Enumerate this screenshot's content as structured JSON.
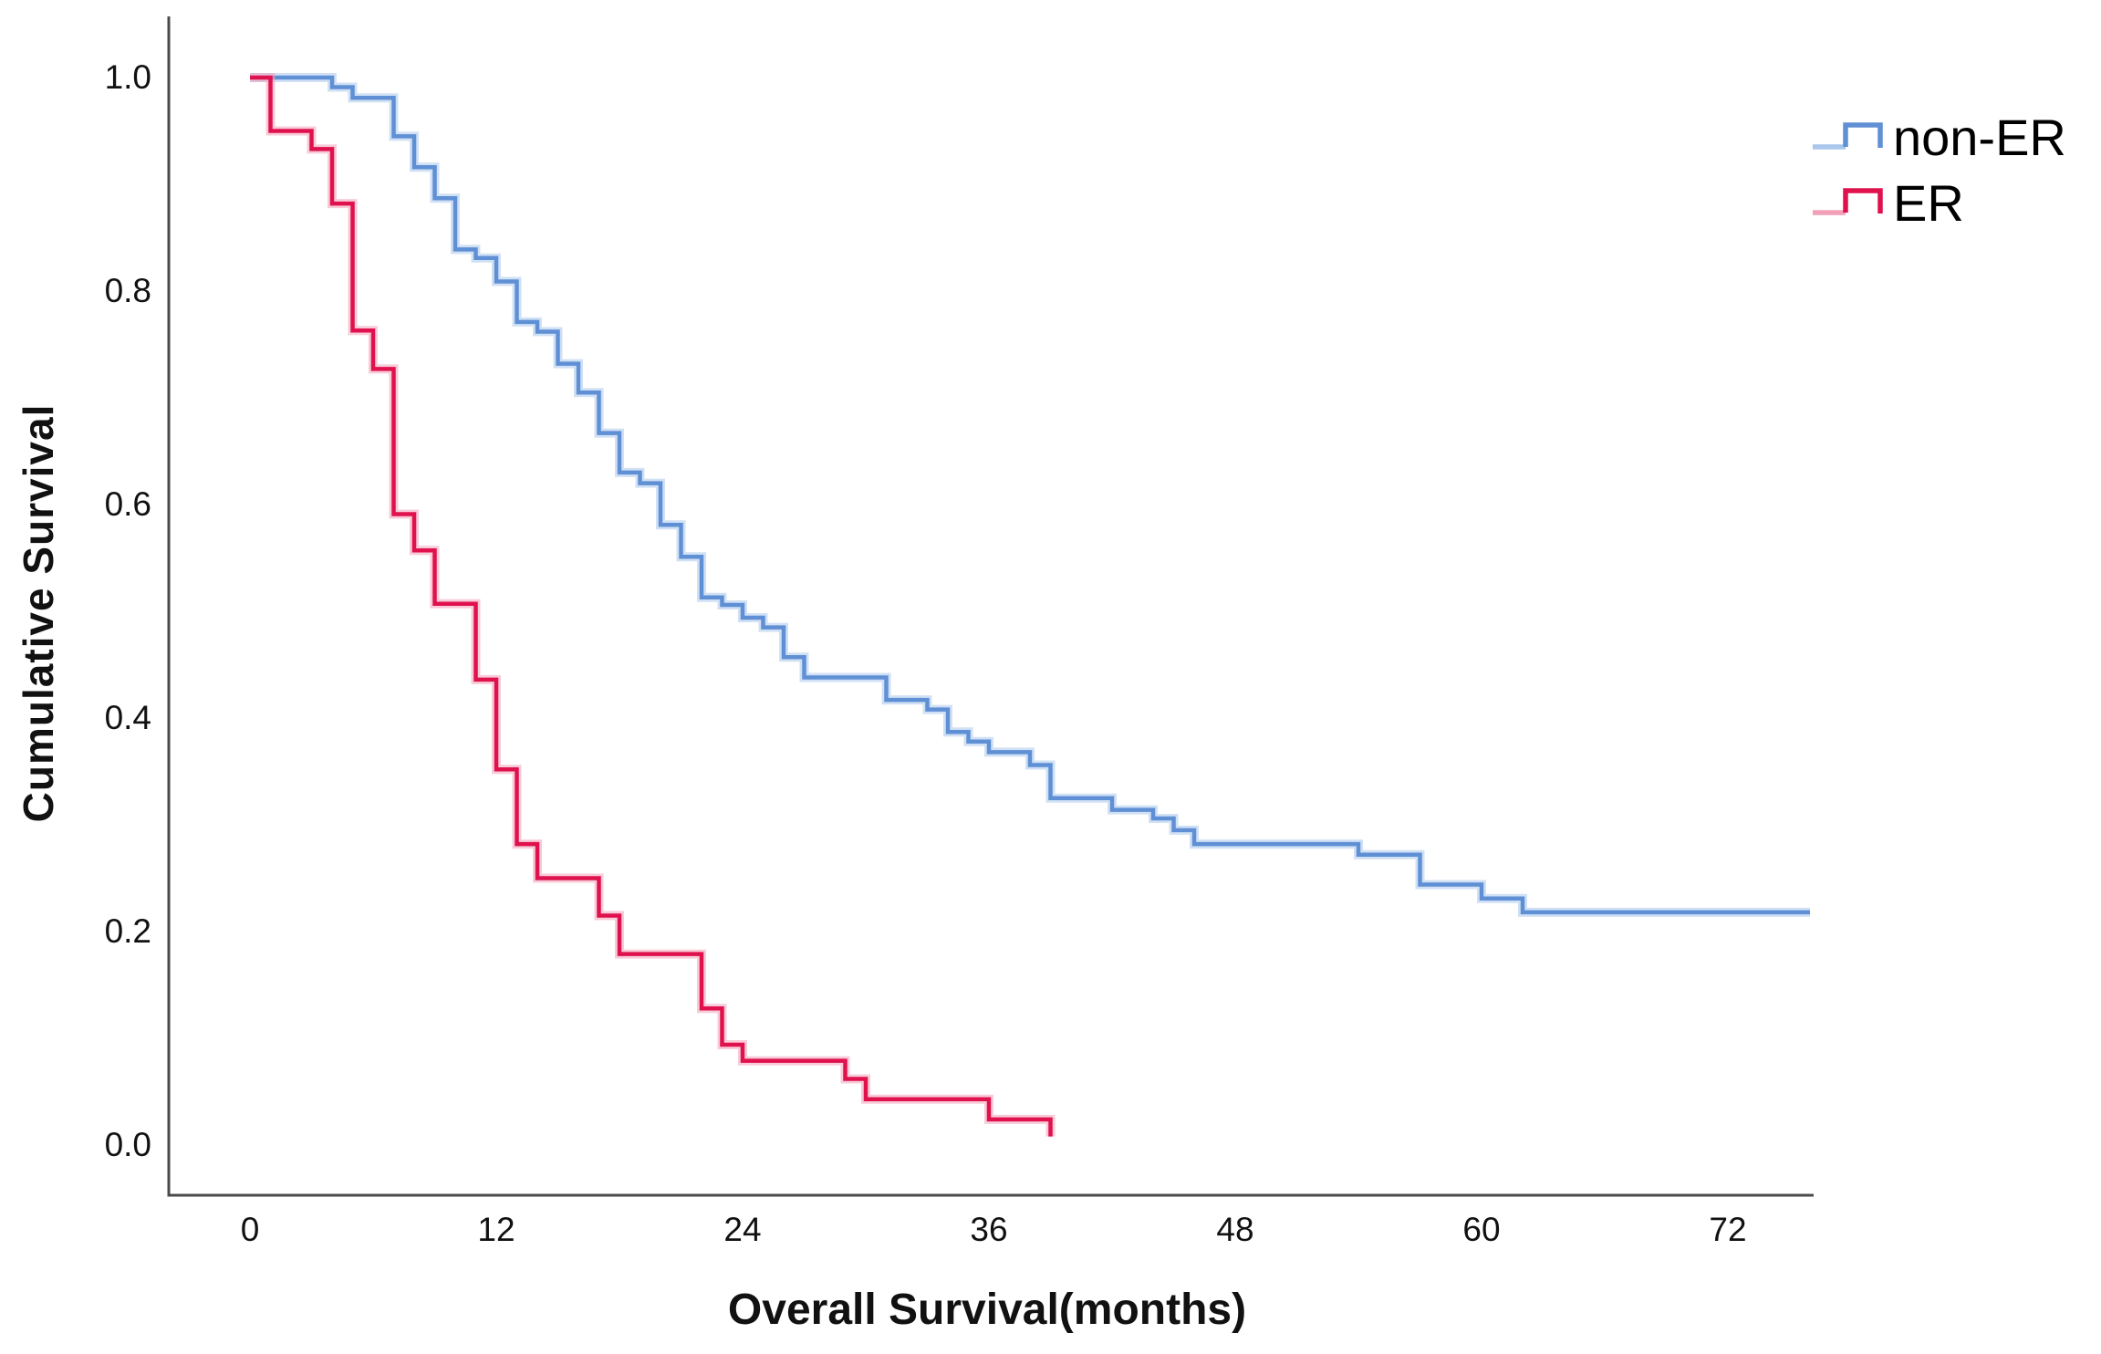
{
  "figure": {
    "background": "#ffffff",
    "axis_color": "#4a4a4a",
    "text_color": "#111111"
  },
  "chart_data": {
    "type": "line",
    "subtype": "kaplan_meier_step",
    "title": "",
    "xlabel": "Overall Survival(months)",
    "ylabel": "Cumulative Survival",
    "xlim": [
      0,
      76
    ],
    "ylim": [
      0.0,
      1.05
    ],
    "grid": false,
    "legend_position": "top-right",
    "x_ticks": [
      {
        "v": 0,
        "label": "0"
      },
      {
        "v": 12,
        "label": "12"
      },
      {
        "v": 24,
        "label": "24"
      },
      {
        "v": 36,
        "label": "36"
      },
      {
        "v": 48,
        "label": "48"
      },
      {
        "v": 60,
        "label": "60"
      },
      {
        "v": 72,
        "label": "72"
      }
    ],
    "y_ticks": [
      {
        "v": 1.0,
        "label": "1.0"
      },
      {
        "v": 0.8,
        "label": "0.8"
      },
      {
        "v": 0.6,
        "label": "0.6"
      },
      {
        "v": 0.4,
        "label": "0.4"
      },
      {
        "v": 0.2,
        "label": "0.2"
      },
      {
        "v": 0.0,
        "label": "0.0"
      }
    ],
    "series": [
      {
        "name": "non-ER",
        "color": "#5F8FD4",
        "halo": "#A9C6EC",
        "end_x": 76,
        "steps": [
          [
            0,
            1.0
          ],
          [
            4,
            0.991
          ],
          [
            5,
            0.981
          ],
          [
            7,
            0.945
          ],
          [
            8,
            0.916
          ],
          [
            9,
            0.887
          ],
          [
            10,
            0.839
          ],
          [
            11,
            0.831
          ],
          [
            12,
            0.809
          ],
          [
            13,
            0.771
          ],
          [
            14,
            0.762
          ],
          [
            15,
            0.732
          ],
          [
            16,
            0.705
          ],
          [
            17,
            0.667
          ],
          [
            18,
            0.63
          ],
          [
            19,
            0.62
          ],
          [
            20,
            0.581
          ],
          [
            21,
            0.551
          ],
          [
            22,
            0.513
          ],
          [
            23,
            0.506
          ],
          [
            24,
            0.494
          ],
          [
            25,
            0.485
          ],
          [
            26,
            0.457
          ],
          [
            27,
            0.438
          ],
          [
            31,
            0.417
          ],
          [
            33,
            0.408
          ],
          [
            34,
            0.387
          ],
          [
            35,
            0.378
          ],
          [
            36,
            0.368
          ],
          [
            38,
            0.356
          ],
          [
            39,
            0.325
          ],
          [
            42,
            0.314
          ],
          [
            44,
            0.306
          ],
          [
            45,
            0.295
          ],
          [
            46,
            0.282
          ],
          [
            54,
            0.272
          ],
          [
            57,
            0.244
          ],
          [
            60,
            0.231
          ],
          [
            62,
            0.218
          ]
        ]
      },
      {
        "name": "ER",
        "color": "#E0124E",
        "halo": "#F2A0B8",
        "end_x": null,
        "steps": [
          [
            0,
            1.0
          ],
          [
            1,
            0.95
          ],
          [
            3,
            0.933
          ],
          [
            4,
            0.882
          ],
          [
            5,
            0.763
          ],
          [
            6,
            0.727
          ],
          [
            7,
            0.591
          ],
          [
            8,
            0.557
          ],
          [
            9,
            0.507
          ],
          [
            11,
            0.436
          ],
          [
            12,
            0.352
          ],
          [
            13,
            0.282
          ],
          [
            14,
            0.25
          ],
          [
            17,
            0.215
          ],
          [
            18,
            0.179
          ],
          [
            22,
            0.128
          ],
          [
            23,
            0.094
          ],
          [
            24,
            0.079
          ],
          [
            29,
            0.062
          ],
          [
            30,
            0.043
          ],
          [
            36,
            0.024
          ],
          [
            39,
            0.008
          ]
        ]
      }
    ]
  }
}
